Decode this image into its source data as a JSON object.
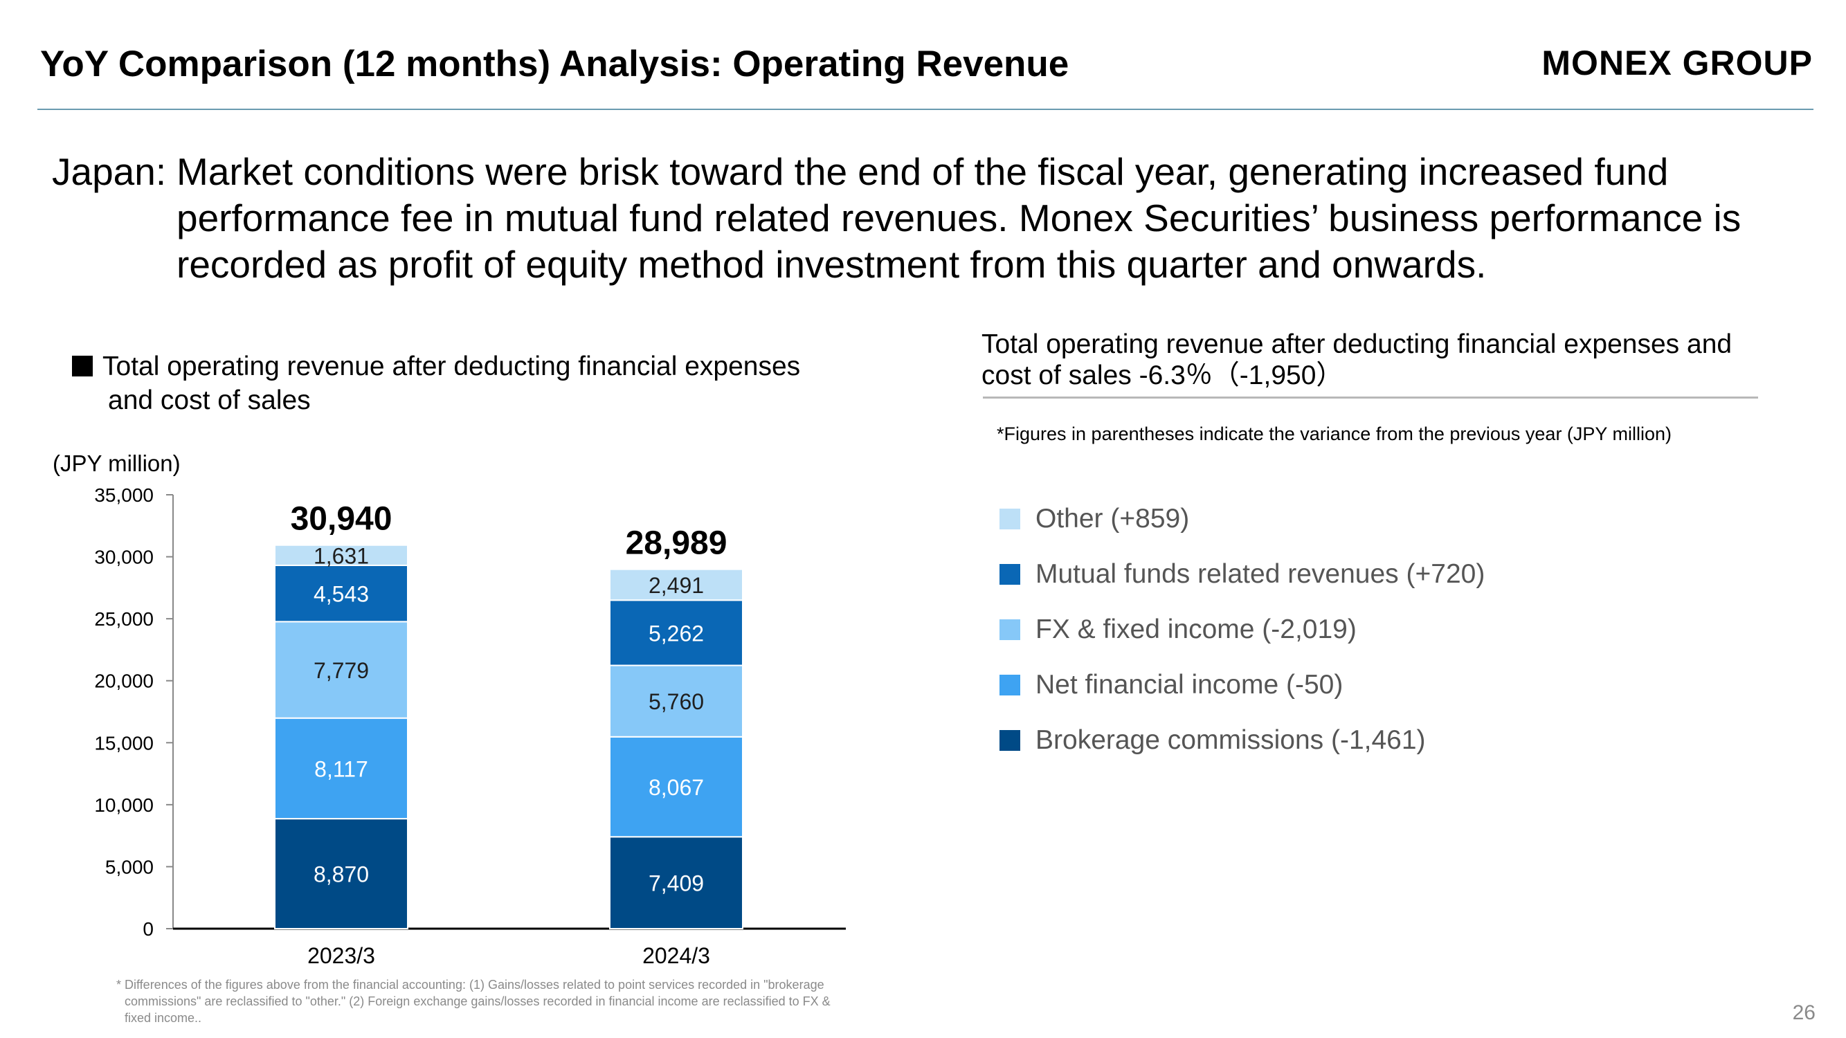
{
  "header": {
    "title": "YoY Comparison (12 months) Analysis: Operating Revenue",
    "brand": "MONEX GROUP"
  },
  "summary": {
    "lead": "Japan:",
    "line1": "Market conditions were brisk toward the end of the fiscal year, generating increased fund",
    "line2": "performance fee in mutual fund related revenues. Monex Securities’ business performance is",
    "line3": "recorded as profit of equity method investment from this quarter and onwards."
  },
  "chart_heading": {
    "line1": "Total operating revenue after deducting financial expenses",
    "line2": "and cost of sales"
  },
  "unit_label": "(JPY million)",
  "right_panel": {
    "heading_line1": "Total operating revenue after deducting financial expenses and",
    "heading_line2": "cost of sales -6.3％（-1,950）",
    "note": "*Figures in parentheses indicate the variance from the previous year (JPY million)"
  },
  "legend": [
    {
      "label": "Other (+859)",
      "color": "#bde0f7"
    },
    {
      "label": "Mutual funds related revenues (+720)",
      "color": "#0a67b5"
    },
    {
      "label": "FX & fixed income (-2,019)",
      "color": "#86c8f8"
    },
    {
      "label": "Net financial income (-50)",
      "color": "#3ea3f2"
    },
    {
      "label": "Brokerage commissions (-1,461)",
      "color": "#004a86"
    }
  ],
  "chart_data": {
    "type": "bar",
    "stacked": true,
    "categories": [
      "2023/3",
      "2024/3"
    ],
    "series": [
      {
        "name": "Brokerage commissions",
        "values": [
          8870,
          7409
        ],
        "labels": [
          "8,870",
          "7,409"
        ],
        "color": "#004a86",
        "label_color": "#ffffff"
      },
      {
        "name": "Net financial income",
        "values": [
          8117,
          8067
        ],
        "labels": [
          "8,117",
          "8,067"
        ],
        "color": "#3ea3f2",
        "label_color": "#ffffff"
      },
      {
        "name": "FX & fixed income",
        "values": [
          7779,
          5760
        ],
        "labels": [
          "7,779",
          "5,760"
        ],
        "color": "#86c8f8",
        "label_color": "#1f1f1f"
      },
      {
        "name": "Mutual funds related revenues",
        "values": [
          4543,
          5262
        ],
        "labels": [
          "4,543",
          "5,262"
        ],
        "color": "#0a67b5",
        "label_color": "#ffffff"
      },
      {
        "name": "Other",
        "values": [
          1631,
          2491
        ],
        "labels": [
          "1,631",
          "2,491"
        ],
        "color": "#bde0f7",
        "label_color": "#1f1f1f"
      }
    ],
    "totals": [
      30940,
      28989
    ],
    "total_labels": [
      "30,940",
      "28,989"
    ],
    "ylim": [
      0,
      35000
    ],
    "yticks": [
      0,
      5000,
      10000,
      15000,
      20000,
      25000,
      30000,
      35000
    ],
    "ytick_labels": [
      "0",
      "5,000",
      "10,000",
      "15,000",
      "20,000",
      "25,000",
      "30,000",
      "35,000"
    ],
    "ylabel": "(JPY million)",
    "grid": false
  },
  "footnote": {
    "line1": "* Differences of the figures above from the financial accounting: (1) Gains/losses related to point services recorded in \"brokerage",
    "line2": "commissions\" are reclassified to \"other.\" (2) Foreign exchange gains/losses recorded in financial income are reclassified to FX &",
    "line3": "fixed income.."
  },
  "page_number": "26"
}
